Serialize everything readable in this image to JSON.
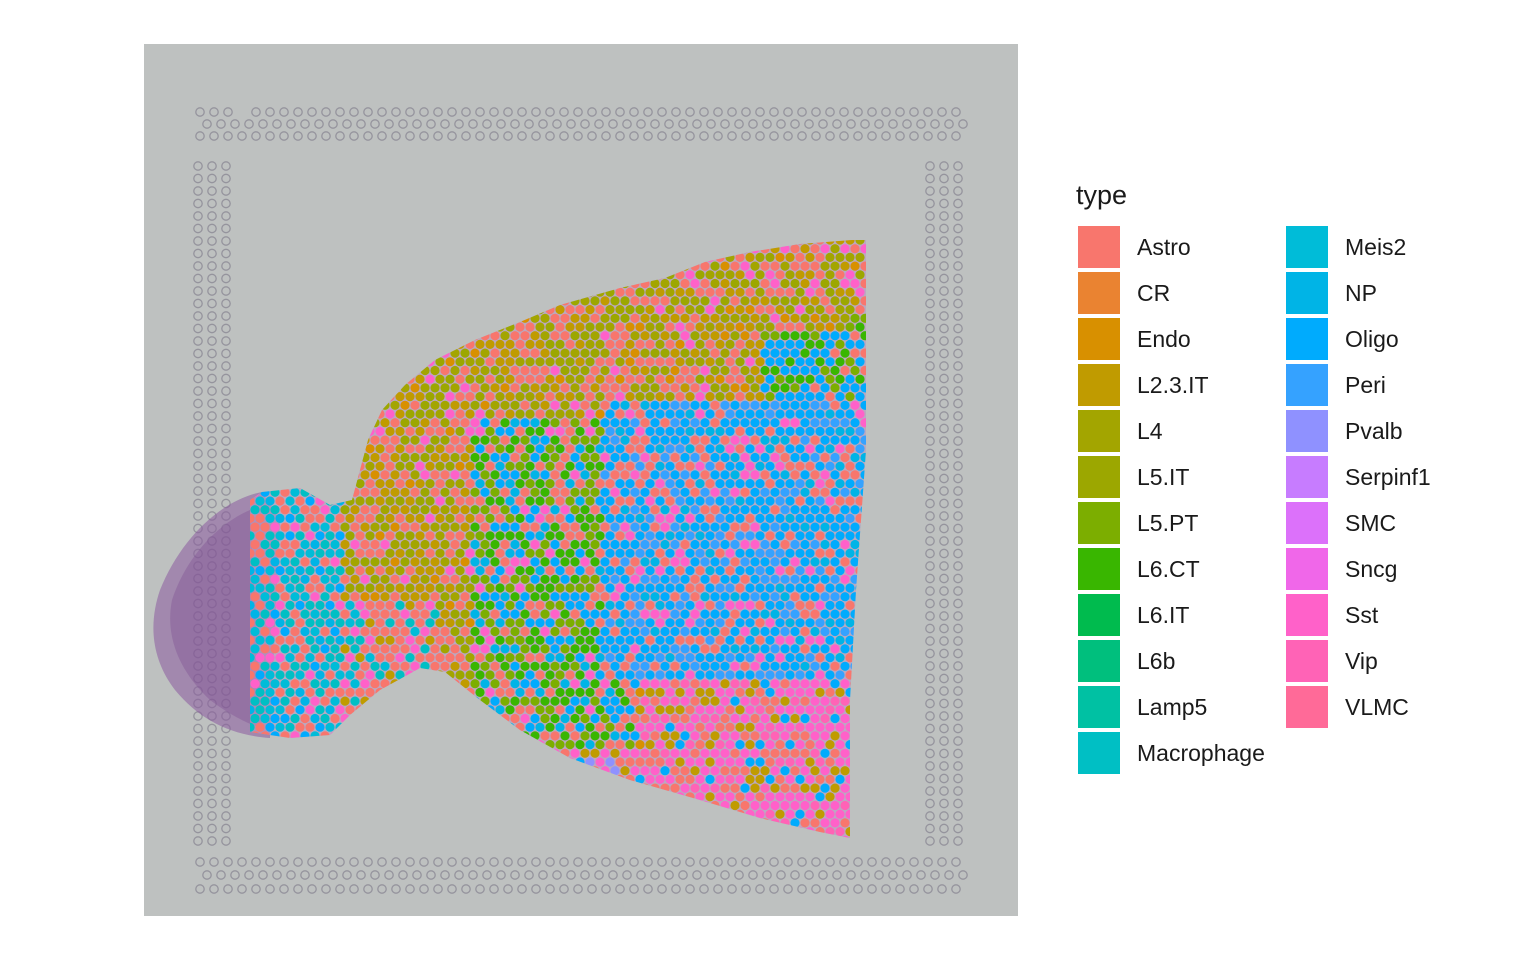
{
  "legend": {
    "title": "type",
    "items": [
      {
        "label": "Astro",
        "color": "#F8766D"
      },
      {
        "label": "CR",
        "color": "#EA8331"
      },
      {
        "label": "Endo",
        "color": "#D89000"
      },
      {
        "label": "L2.3.IT",
        "color": "#C09B00"
      },
      {
        "label": "L4",
        "color": "#A3A500"
      },
      {
        "label": "L5.IT",
        "color": "#9CA700"
      },
      {
        "label": "L5.PT",
        "color": "#7CAE00"
      },
      {
        "label": "L6.CT",
        "color": "#39B600"
      },
      {
        "label": "L6.IT",
        "color": "#00BB4E"
      },
      {
        "label": "L6b",
        "color": "#00BF7D"
      },
      {
        "label": "Lamp5",
        "color": "#00C1A3"
      },
      {
        "label": "Macrophage",
        "color": "#00BFC4"
      },
      {
        "label": "Meis2",
        "color": "#00BCD8"
      },
      {
        "label": "NP",
        "color": "#00B4E6"
      },
      {
        "label": "Oligo",
        "color": "#00ABFD"
      },
      {
        "label": "Peri",
        "color": "#35A2FF"
      },
      {
        "label": "Pvalb",
        "color": "#8F91FF"
      },
      {
        "label": "Serpinf1",
        "color": "#C77CFF"
      },
      {
        "label": "SMC",
        "color": "#DC71FA"
      },
      {
        "label": "Sncg",
        "color": "#F067E9"
      },
      {
        "label": "Sst",
        "color": "#FF61C9"
      },
      {
        "label": "Vip",
        "color": "#FF63B6"
      },
      {
        "label": "VLMC",
        "color": "#FF6A98"
      }
    ]
  },
  "image": {
    "description_icon": "brain-tissue-section-icon",
    "background_color": "#BEC1C0",
    "tissue_stain_color": "#8A5A9E",
    "fiducial_color": "#8E8C96"
  }
}
